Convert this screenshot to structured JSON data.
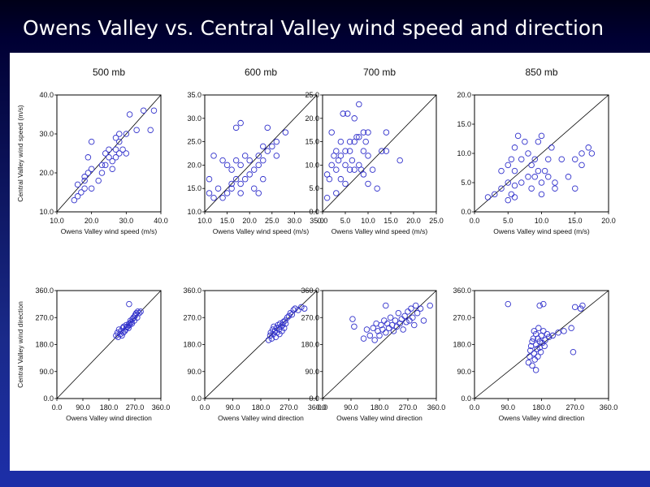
{
  "slide": {
    "title": "Owens Valley vs. Central Valley wind speed and direction"
  },
  "chart_data": [
    {
      "type": "scatter",
      "title": "500 mb",
      "xlabel": "Owens Valley wind speed (m/s)",
      "ylabel": "Central Valley wind speed (m/s)",
      "xlim": [
        10,
        40
      ],
      "ylim": [
        10,
        40
      ],
      "xticks": [
        "10.0",
        "20.0",
        "30.0",
        "40.0"
      ],
      "yticks": [
        "10.0",
        "20.0",
        "30.0",
        "40.0"
      ],
      "reference_line": "1:1",
      "points": [
        [
          15,
          13
        ],
        [
          16,
          14
        ],
        [
          17,
          15
        ],
        [
          16,
          17
        ],
        [
          18,
          16
        ],
        [
          18,
          18
        ],
        [
          18,
          19
        ],
        [
          19,
          20
        ],
        [
          20,
          21
        ],
        [
          19,
          24
        ],
        [
          20,
          28
        ],
        [
          20,
          16
        ],
        [
          22,
          18
        ],
        [
          23,
          20
        ],
        [
          23,
          22
        ],
        [
          24,
          22
        ],
        [
          24,
          25
        ],
        [
          25,
          24
        ],
        [
          25,
          26
        ],
        [
          26,
          21
        ],
        [
          26,
          23
        ],
        [
          27,
          24
        ],
        [
          27,
          26
        ],
        [
          27,
          29
        ],
        [
          28,
          28
        ],
        [
          28,
          30
        ],
        [
          28,
          25
        ],
        [
          29,
          26
        ],
        [
          30,
          25
        ],
        [
          30,
          30
        ],
        [
          31,
          35
        ],
        [
          33,
          31
        ],
        [
          35,
          36
        ],
        [
          37,
          31
        ],
        [
          38,
          36
        ]
      ]
    },
    {
      "type": "scatter",
      "title": "600 mb",
      "xlabel": "Owens Valley wind speed (m/s)",
      "ylabel": "",
      "xlim": [
        10,
        35
      ],
      "ylim": [
        10,
        35
      ],
      "xticks": [
        "10.0",
        "15.0",
        "20.0",
        "25.0",
        "30.0",
        "35.0"
      ],
      "yticks": [
        "10.0",
        "15.0",
        "20.0",
        "25.0",
        "30.0",
        "35.0"
      ],
      "reference_line": "1:1",
      "points": [
        [
          11,
          14
        ],
        [
          11,
          17
        ],
        [
          12,
          22
        ],
        [
          12,
          13
        ],
        [
          13,
          15
        ],
        [
          14,
          13
        ],
        [
          14,
          21
        ],
        [
          15,
          14
        ],
        [
          15,
          20
        ],
        [
          16,
          15
        ],
        [
          16,
          16
        ],
        [
          16,
          19
        ],
        [
          17,
          17
        ],
        [
          17,
          21
        ],
        [
          17,
          28
        ],
        [
          18,
          14
        ],
        [
          18,
          16
        ],
        [
          18,
          20
        ],
        [
          18,
          29
        ],
        [
          19,
          17
        ],
        [
          19,
          22
        ],
        [
          20,
          21
        ],
        [
          20,
          18
        ],
        [
          21,
          15
        ],
        [
          21,
          19
        ],
        [
          22,
          14
        ],
        [
          22,
          20
        ],
        [
          22,
          22
        ],
        [
          23,
          17
        ],
        [
          23,
          21
        ],
        [
          23,
          24
        ],
        [
          24,
          23
        ],
        [
          24,
          28
        ],
        [
          25,
          24
        ],
        [
          26,
          22
        ],
        [
          26,
          25
        ],
        [
          28,
          27
        ]
      ]
    },
    {
      "type": "scatter",
      "title": "700 mb",
      "xlabel": "Owens Valley wind speed (m/s)",
      "ylabel": "",
      "xlim": [
        0,
        25
      ],
      "ylim": [
        0,
        25
      ],
      "xticks": [
        "0.0",
        "5.0",
        "10.0",
        "15.0",
        "20.0",
        "25.0"
      ],
      "yticks": [
        "0.0",
        "5.0",
        "10.0",
        "15.0",
        "20.0",
        "25.0"
      ],
      "reference_line": "1:1",
      "points": [
        [
          1,
          8
        ],
        [
          1,
          3
        ],
        [
          1.5,
          7
        ],
        [
          2,
          17
        ],
        [
          2,
          10
        ],
        [
          2.5,
          12
        ],
        [
          3,
          13
        ],
        [
          3,
          4
        ],
        [
          3,
          9
        ],
        [
          3.5,
          11
        ],
        [
          4,
          12
        ],
        [
          4,
          7
        ],
        [
          4,
          15
        ],
        [
          4.5,
          21
        ],
        [
          5,
          10
        ],
        [
          5,
          13
        ],
        [
          5,
          6
        ],
        [
          5.5,
          21
        ],
        [
          6,
          9
        ],
        [
          6,
          13
        ],
        [
          6,
          15
        ],
        [
          6.5,
          11
        ],
        [
          7,
          15
        ],
        [
          7,
          20
        ],
        [
          7,
          9
        ],
        [
          7.5,
          16
        ],
        [
          8,
          23
        ],
        [
          8,
          16
        ],
        [
          8,
          10
        ],
        [
          8.5,
          9
        ],
        [
          9,
          8
        ],
        [
          9,
          17
        ],
        [
          9,
          13
        ],
        [
          9.5,
          15
        ],
        [
          10,
          12
        ],
        [
          10,
          17
        ],
        [
          10,
          6
        ],
        [
          11,
          9
        ],
        [
          12,
          5
        ],
        [
          13,
          13
        ],
        [
          14,
          17
        ],
        [
          14,
          13
        ],
        [
          17,
          11
        ]
      ]
    },
    {
      "type": "scatter",
      "title": "850 mb",
      "xlabel": "Owens Valley wind speed (m/s)",
      "ylabel": "",
      "xlim": [
        0,
        20
      ],
      "ylim": [
        0,
        20
      ],
      "xticks": [
        "0.0",
        "5.0",
        "10.0",
        "15.0",
        "20.0"
      ],
      "yticks": [
        "0.0",
        "5.0",
        "10.0",
        "15.0",
        "20.0"
      ],
      "reference_line": "1:1",
      "points": [
        [
          2,
          2.5
        ],
        [
          3,
          3
        ],
        [
          4,
          4
        ],
        [
          4,
          7
        ],
        [
          5,
          2
        ],
        [
          5,
          5
        ],
        [
          5,
          8
        ],
        [
          5.5,
          3
        ],
        [
          5.5,
          9
        ],
        [
          6,
          2.5
        ],
        [
          6,
          4.5
        ],
        [
          6,
          7
        ],
        [
          6,
          11
        ],
        [
          6.5,
          13
        ],
        [
          7,
          5
        ],
        [
          7,
          9
        ],
        [
          7.5,
          12
        ],
        [
          8,
          6
        ],
        [
          8,
          10
        ],
        [
          8.5,
          4
        ],
        [
          8.5,
          8
        ],
        [
          9,
          6
        ],
        [
          9,
          9
        ],
        [
          9.5,
          12
        ],
        [
          9.5,
          7
        ],
        [
          10,
          3
        ],
        [
          10,
          5
        ],
        [
          10,
          13
        ],
        [
          10.5,
          7
        ],
        [
          11,
          6
        ],
        [
          11,
          9
        ],
        [
          11.5,
          11
        ],
        [
          12,
          5
        ],
        [
          12,
          4
        ],
        [
          13,
          9
        ],
        [
          14,
          6
        ],
        [
          15,
          4
        ],
        [
          15,
          9
        ],
        [
          16,
          8
        ],
        [
          16,
          10
        ],
        [
          17,
          11
        ],
        [
          17.5,
          10
        ]
      ]
    },
    {
      "type": "scatter",
      "title": "",
      "xlabel": "Owens Valley wind direction",
      "ylabel": "Central Valley wind direction",
      "xlim": [
        0,
        360
      ],
      "ylim": [
        0,
        360
      ],
      "xticks": [
        "0.0",
        "90.0",
        "180.0",
        "270.0",
        "360.0"
      ],
      "yticks": [
        "0.0",
        "90.0",
        "180.0",
        "270.0",
        "360.0"
      ],
      "reference_line": "1:1",
      "points": [
        [
          205,
          210
        ],
        [
          210,
          220
        ],
        [
          212,
          205
        ],
        [
          215,
          230
        ],
        [
          220,
          215
        ],
        [
          222,
          225
        ],
        [
          225,
          210
        ],
        [
          228,
          235
        ],
        [
          230,
          220
        ],
        [
          232,
          240
        ],
        [
          235,
          225
        ],
        [
          238,
          230
        ],
        [
          240,
          245
        ],
        [
          242,
          238
        ],
        [
          245,
          240
        ],
        [
          248,
          235
        ],
        [
          250,
          250
        ],
        [
          252,
          245
        ],
        [
          255,
          260
        ],
        [
          258,
          255
        ],
        [
          260,
          250
        ],
        [
          262,
          265
        ],
        [
          265,
          270
        ],
        [
          268,
          260
        ],
        [
          270,
          275
        ],
        [
          272,
          280
        ],
        [
          275,
          285
        ],
        [
          278,
          270
        ],
        [
          280,
          290
        ],
        [
          285,
          285
        ],
        [
          290,
          290
        ],
        [
          250,
          315
        ]
      ]
    },
    {
      "type": "scatter",
      "title": "",
      "xlabel": "Owens Valley wind direction",
      "ylabel": "",
      "xlim": [
        0,
        360
      ],
      "ylim": [
        0,
        360
      ],
      "xticks": [
        "0.0",
        "90.0",
        "180.0",
        "270.0",
        "360.0"
      ],
      "yticks": [
        "0.0",
        "90.0",
        "180.0",
        "270.0",
        "360.0"
      ],
      "reference_line": "1:1",
      "points": [
        [
          205,
          195
        ],
        [
          210,
          210
        ],
        [
          212,
          220
        ],
        [
          215,
          200
        ],
        [
          218,
          230
        ],
        [
          220,
          215
        ],
        [
          222,
          240
        ],
        [
          225,
          225
        ],
        [
          228,
          205
        ],
        [
          230,
          235
        ],
        [
          232,
          220
        ],
        [
          235,
          245
        ],
        [
          238,
          230
        ],
        [
          240,
          215
        ],
        [
          242,
          250
        ],
        [
          245,
          240
        ],
        [
          248,
          225
        ],
        [
          250,
          245
        ],
        [
          252,
          255
        ],
        [
          255,
          235
        ],
        [
          258,
          260
        ],
        [
          260,
          250
        ],
        [
          265,
          270
        ],
        [
          270,
          275
        ],
        [
          275,
          285
        ],
        [
          280,
          280
        ],
        [
          285,
          295
        ],
        [
          290,
          300
        ],
        [
          300,
          295
        ],
        [
          310,
          305
        ],
        [
          320,
          300
        ]
      ]
    },
    {
      "type": "scatter",
      "title": "",
      "xlabel": "Owens Valley wind direction",
      "ylabel": "",
      "xlim": [
        0,
        360
      ],
      "ylim": [
        0,
        360
      ],
      "xticks": [
        "0.0",
        "90.0",
        "180.0",
        "270.0",
        "360.0"
      ],
      "yticks": [
        "0.0",
        "90.0",
        "180.0",
        "270.0",
        "360.0"
      ],
      "reference_line": "1:1",
      "points": [
        [
          95,
          265
        ],
        [
          100,
          240
        ],
        [
          130,
          200
        ],
        [
          140,
          230
        ],
        [
          150,
          210
        ],
        [
          160,
          235
        ],
        [
          165,
          195
        ],
        [
          170,
          250
        ],
        [
          175,
          225
        ],
        [
          180,
          210
        ],
        [
          185,
          245
        ],
        [
          190,
          230
        ],
        [
          195,
          260
        ],
        [
          200,
          220
        ],
        [
          205,
          250
        ],
        [
          210,
          235
        ],
        [
          215,
          270
        ],
        [
          220,
          245
        ],
        [
          225,
          225
        ],
        [
          230,
          260
        ],
        [
          235,
          240
        ],
        [
          240,
          285
        ],
        [
          245,
          250
        ],
        [
          250,
          265
        ],
        [
          255,
          230
        ],
        [
          260,
          275
        ],
        [
          265,
          255
        ],
        [
          270,
          290
        ],
        [
          275,
          260
        ],
        [
          280,
          300
        ],
        [
          285,
          270
        ],
        [
          290,
          245
        ],
        [
          295,
          310
        ],
        [
          300,
          285
        ],
        [
          310,
          300
        ],
        [
          320,
          260
        ],
        [
          340,
          310
        ],
        [
          200,
          310
        ]
      ]
    },
    {
      "type": "scatter",
      "title": "",
      "xlabel": "Owens Valley wind direction",
      "ylabel": "",
      "xlim": [
        0,
        360
      ],
      "ylim": [
        0,
        360
      ],
      "xticks": [
        "0.0",
        "90.0",
        "180.0",
        "270.0",
        "360.0"
      ],
      "yticks": [
        "0.0",
        "90.0",
        "180.0",
        "270.0",
        "360.0"
      ],
      "reference_line": "1:1",
      "points": [
        [
          90,
          315
        ],
        [
          145,
          120
        ],
        [
          148,
          140
        ],
        [
          150,
          160
        ],
        [
          152,
          175
        ],
        [
          155,
          110
        ],
        [
          155,
          190
        ],
        [
          158,
          200
        ],
        [
          160,
          150
        ],
        [
          160,
          225
        ],
        [
          162,
          130
        ],
        [
          165,
          95
        ],
        [
          165,
          180
        ],
        [
          165,
          215
        ],
        [
          168,
          165
        ],
        [
          170,
          140
        ],
        [
          170,
          200
        ],
        [
          172,
          235
        ],
        [
          175,
          170
        ],
        [
          175,
          190
        ],
        [
          178,
          155
        ],
        [
          180,
          210
        ],
        [
          182,
          185
        ],
        [
          185,
          225
        ],
        [
          188,
          175
        ],
        [
          190,
          195
        ],
        [
          195,
          215
        ],
        [
          200,
          205
        ],
        [
          210,
          210
        ],
        [
          225,
          220
        ],
        [
          240,
          225
        ],
        [
          260,
          235
        ],
        [
          265,
          155
        ],
        [
          270,
          305
        ],
        [
          285,
          300
        ],
        [
          290,
          310
        ],
        [
          175,
          310
        ],
        [
          185,
          315
        ]
      ]
    }
  ]
}
